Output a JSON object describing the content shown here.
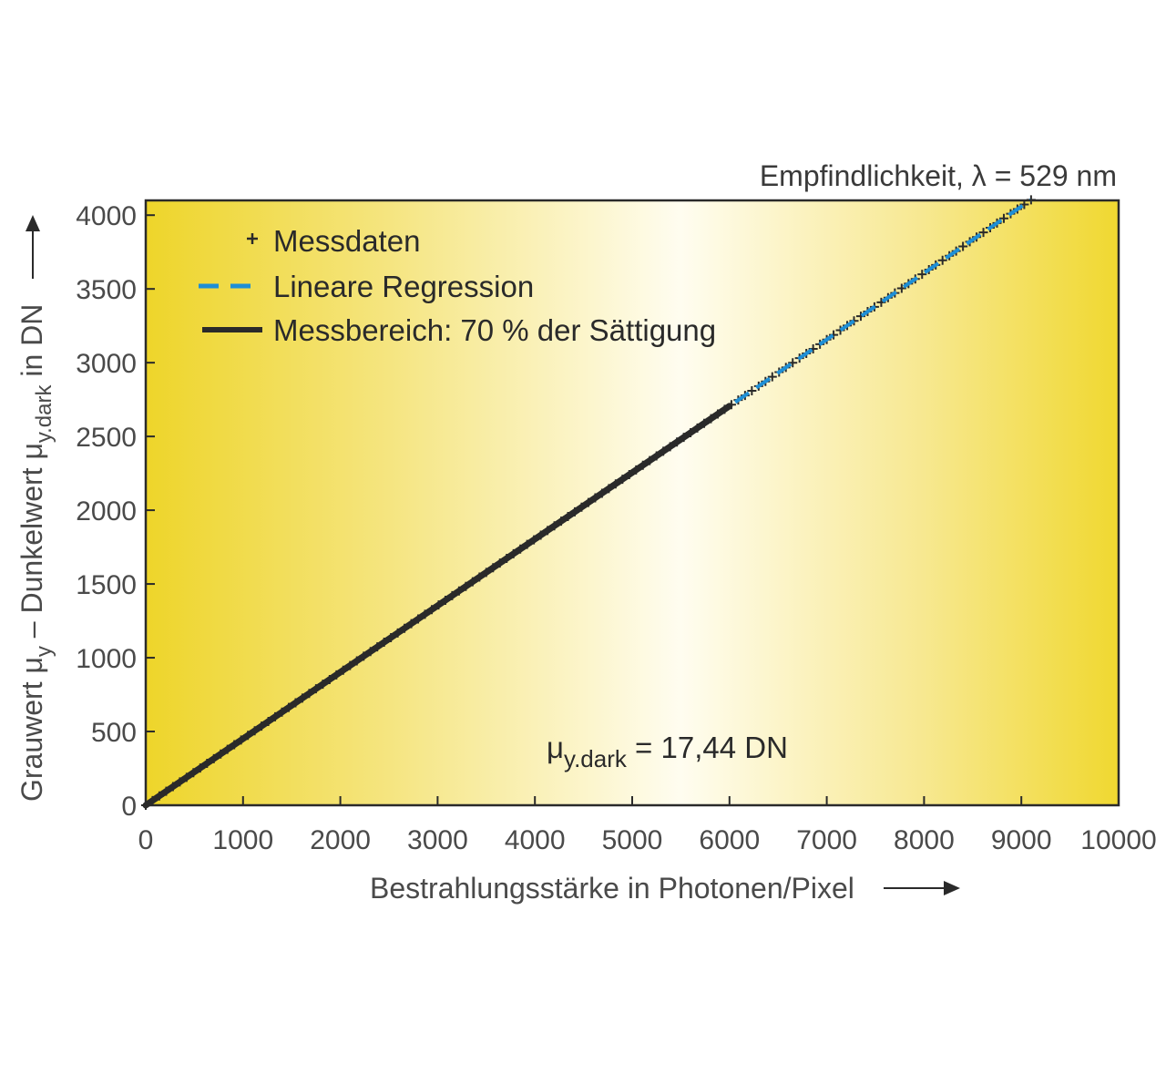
{
  "chart_data": {
    "type": "line",
    "subtitle": "Empfindlichkeit, λ = 529 nm",
    "xlabel": "Bestrahlungsstärke in Photonen/Pixel",
    "ylabel": "Grauwert μy – Dunkelwert μy.dark in DN",
    "ylabel_parts": {
      "main1": "Grauwert μ",
      "sub1": "y",
      "main2": " – Dunkelwert μ",
      "sub2": "y.dark",
      "main3": " in DN"
    },
    "xlim": [
      0,
      10000
    ],
    "ylim": [
      0,
      4100
    ],
    "x_ticks": [
      0,
      1000,
      2000,
      3000,
      4000,
      5000,
      6000,
      7000,
      8000,
      9000,
      10000
    ],
    "x_tick_labels": [
      "0",
      "1000",
      "2000",
      "3000",
      "4000",
      "5000",
      "6000",
      "7000",
      "8000",
      "9000",
      "10000"
    ],
    "y_ticks": [
      0,
      500,
      1000,
      1500,
      2000,
      2500,
      3000,
      3500,
      4000
    ],
    "y_tick_labels": [
      "0",
      "500",
      "1000",
      "1500",
      "2000",
      "2500",
      "3000",
      "3500",
      "4000"
    ],
    "grid": false,
    "legend_position": "top-left",
    "series": [
      {
        "name": "Messdaten",
        "style": "plus-markers",
        "color": "#2a2a2a",
        "x_range": [
          0,
          9100
        ],
        "slope": 0.451
      },
      {
        "name": "Lineare Regression",
        "style": "dashed",
        "color": "#1e8fd6",
        "x": [
          0,
          9100
        ],
        "y": [
          0,
          4104
        ]
      },
      {
        "name": "Messbereich: 70 % der Sättigung",
        "style": "solid-thick",
        "color": "#2a2a2a",
        "x": [
          0,
          6000
        ],
        "y": [
          0,
          2706
        ]
      }
    ],
    "annotation": {
      "main": "μ",
      "sub": "y.dark",
      "rest": " = 17,44 DN"
    },
    "colors": {
      "background_edge": "#f0d830",
      "background_center": "#fffce8",
      "axis": "#2a2a2a",
      "text": "#4a4a4a"
    }
  }
}
